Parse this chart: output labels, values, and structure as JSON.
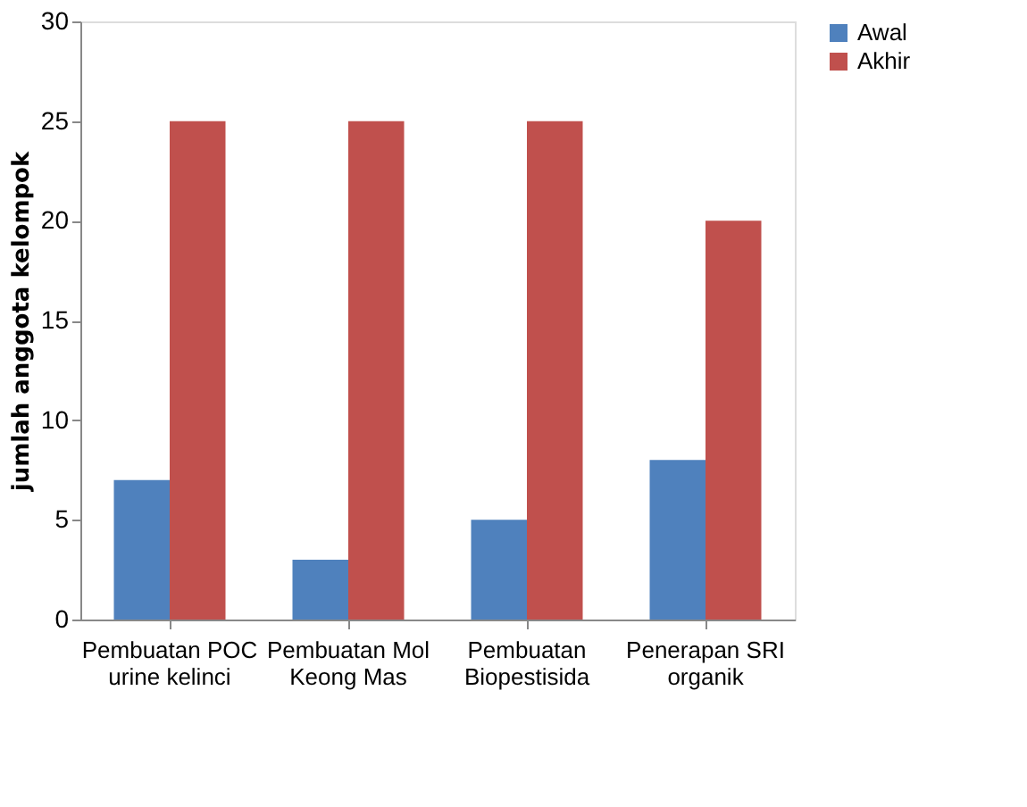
{
  "chart_data": {
    "type": "bar",
    "ylabel": "jumlah anggota kelompok",
    "categories": [
      "Pembuatan POC\nurine kelinci",
      "Pembuatan Mol\nKeong Mas",
      "Pembuatan\nBiopestisida",
      "Penerapan SRI\norganik"
    ],
    "series": [
      {
        "name": "Awal",
        "color": "#4f81bd",
        "values": [
          7,
          3,
          5,
          8
        ]
      },
      {
        "name": "Akhir",
        "color": "#c0504d",
        "values": [
          25,
          25,
          25,
          20
        ]
      }
    ],
    "ylim": [
      0,
      30
    ],
    "yticks": [
      0,
      5,
      10,
      15,
      20,
      25,
      30
    ],
    "grid": false,
    "legend": "right"
  }
}
